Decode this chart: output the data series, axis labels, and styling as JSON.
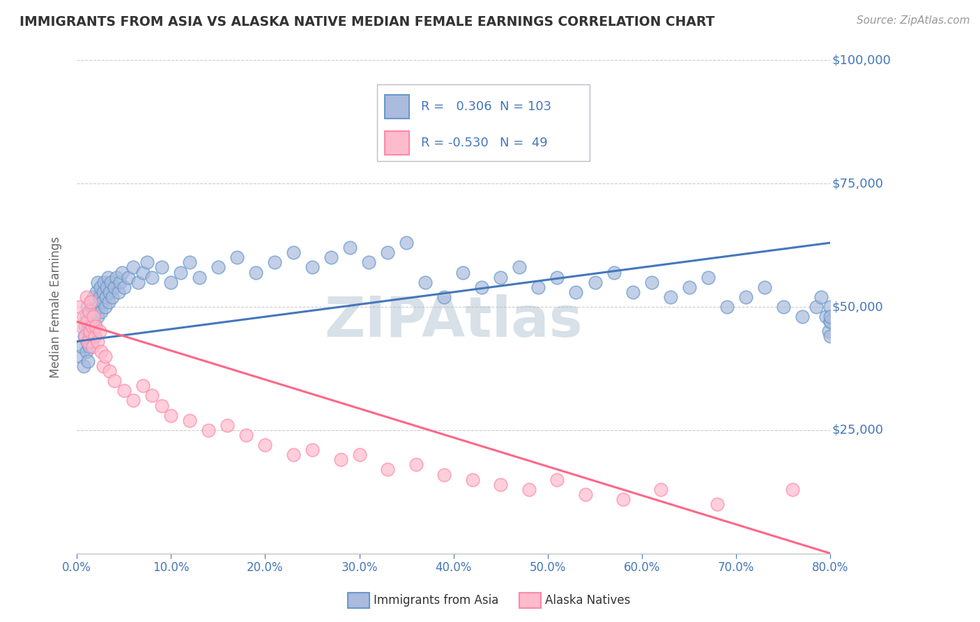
{
  "title": "IMMIGRANTS FROM ASIA VS ALASKA NATIVE MEDIAN FEMALE EARNINGS CORRELATION CHART",
  "source_text": "Source: ZipAtlas.com",
  "ylabel": "Median Female Earnings",
  "watermark": "ZIPAtlas",
  "xlim": [
    0.0,
    0.8
  ],
  "ylim": [
    0,
    100000
  ],
  "yticks": [
    0,
    25000,
    50000,
    75000,
    100000
  ],
  "ytick_labels": [
    "",
    "$25,000",
    "$50,000",
    "$75,000",
    "$100,000"
  ],
  "xtick_labels": [
    "0.0%",
    "10.0%",
    "20.0%",
    "30.0%",
    "40.0%",
    "50.0%",
    "60.0%",
    "70.0%",
    "80.0%"
  ],
  "xticks": [
    0.0,
    0.1,
    0.2,
    0.3,
    0.4,
    0.5,
    0.6,
    0.7,
    0.8
  ],
  "blue_face_color": "#AABBDD",
  "blue_edge_color": "#6699CC",
  "pink_face_color": "#FFBBCC",
  "pink_edge_color": "#FF88AA",
  "blue_line_color": "#4477BB",
  "pink_line_color": "#FF6688",
  "blue_R": 0.306,
  "blue_N": 103,
  "pink_R": -0.53,
  "pink_N": 49,
  "title_color": "#333333",
  "axis_label_color": "#666666",
  "tick_color": "#4477BB",
  "source_color": "#999999",
  "background_color": "#FFFFFF",
  "grid_color": "#CCCCCC",
  "watermark_color": "#AABBCC",
  "blue_line_y0": 43000,
  "blue_line_y1": 63000,
  "pink_line_y0": 47000,
  "pink_line_y1": 0,
  "blue_scatter_x": [
    0.003,
    0.005,
    0.007,
    0.008,
    0.009,
    0.01,
    0.01,
    0.011,
    0.011,
    0.012,
    0.012,
    0.013,
    0.013,
    0.014,
    0.014,
    0.015,
    0.015,
    0.016,
    0.016,
    0.017,
    0.017,
    0.018,
    0.018,
    0.019,
    0.019,
    0.02,
    0.02,
    0.021,
    0.022,
    0.022,
    0.023,
    0.024,
    0.025,
    0.026,
    0.027,
    0.028,
    0.029,
    0.03,
    0.031,
    0.032,
    0.033,
    0.034,
    0.035,
    0.036,
    0.038,
    0.04,
    0.042,
    0.044,
    0.046,
    0.048,
    0.05,
    0.055,
    0.06,
    0.065,
    0.07,
    0.075,
    0.08,
    0.09,
    0.1,
    0.11,
    0.12,
    0.13,
    0.15,
    0.17,
    0.19,
    0.21,
    0.23,
    0.25,
    0.27,
    0.29,
    0.31,
    0.33,
    0.35,
    0.37,
    0.39,
    0.41,
    0.43,
    0.45,
    0.47,
    0.49,
    0.51,
    0.53,
    0.55,
    0.57,
    0.59,
    0.61,
    0.63,
    0.65,
    0.67,
    0.69,
    0.71,
    0.73,
    0.75,
    0.77,
    0.785,
    0.79,
    0.795,
    0.798,
    0.8,
    0.8,
    0.8,
    0.8,
    0.8
  ],
  "blue_scatter_y": [
    40000,
    42000,
    38000,
    44000,
    46000,
    41000,
    48000,
    43000,
    50000,
    45000,
    39000,
    47000,
    42000,
    49000,
    44000,
    46000,
    51000,
    48000,
    43000,
    50000,
    45000,
    52000,
    47000,
    44000,
    49000,
    51000,
    46000,
    53000,
    48000,
    55000,
    50000,
    52000,
    54000,
    49000,
    51000,
    53000,
    55000,
    50000,
    52000,
    54000,
    56000,
    51000,
    53000,
    55000,
    52000,
    54000,
    56000,
    53000,
    55000,
    57000,
    54000,
    56000,
    58000,
    55000,
    57000,
    59000,
    56000,
    58000,
    55000,
    57000,
    59000,
    56000,
    58000,
    60000,
    57000,
    59000,
    61000,
    58000,
    60000,
    62000,
    59000,
    61000,
    63000,
    55000,
    52000,
    57000,
    54000,
    56000,
    58000,
    54000,
    56000,
    53000,
    55000,
    57000,
    53000,
    55000,
    52000,
    54000,
    56000,
    50000,
    52000,
    54000,
    50000,
    48000,
    50000,
    52000,
    48000,
    45000,
    47000,
    50000,
    47000,
    44000,
    48000
  ],
  "pink_scatter_x": [
    0.003,
    0.005,
    0.007,
    0.009,
    0.01,
    0.011,
    0.012,
    0.013,
    0.014,
    0.015,
    0.016,
    0.017,
    0.018,
    0.019,
    0.02,
    0.022,
    0.024,
    0.026,
    0.028,
    0.03,
    0.035,
    0.04,
    0.05,
    0.06,
    0.07,
    0.08,
    0.09,
    0.1,
    0.12,
    0.14,
    0.16,
    0.18,
    0.2,
    0.23,
    0.25,
    0.28,
    0.3,
    0.33,
    0.36,
    0.39,
    0.42,
    0.45,
    0.48,
    0.51,
    0.54,
    0.58,
    0.62,
    0.68,
    0.76
  ],
  "pink_scatter_y": [
    50000,
    46000,
    48000,
    44000,
    52000,
    47000,
    43000,
    49000,
    45000,
    51000,
    46000,
    42000,
    48000,
    44000,
    46000,
    43000,
    45000,
    41000,
    38000,
    40000,
    37000,
    35000,
    33000,
    31000,
    34000,
    32000,
    30000,
    28000,
    27000,
    25000,
    26000,
    24000,
    22000,
    20000,
    21000,
    19000,
    20000,
    17000,
    18000,
    16000,
    15000,
    14000,
    13000,
    15000,
    12000,
    11000,
    13000,
    10000,
    13000
  ]
}
